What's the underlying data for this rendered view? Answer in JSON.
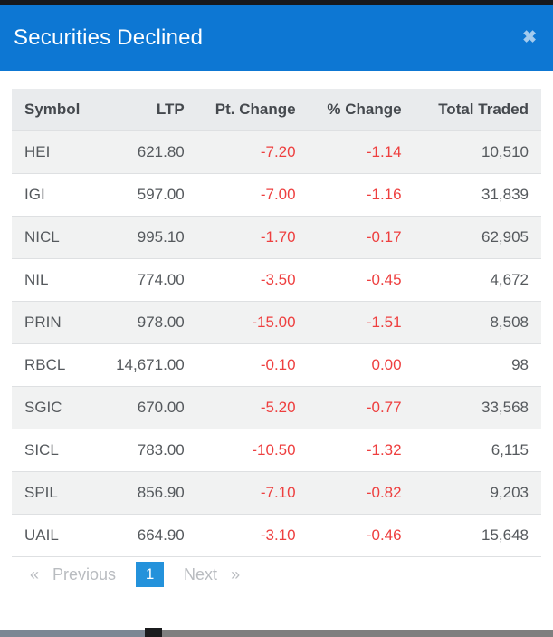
{
  "modal": {
    "title": "Securities Declined",
    "close_icon": "✖"
  },
  "table": {
    "columns": [
      "Symbol",
      "LTP",
      "Pt. Change",
      "% Change",
      "Total Traded"
    ],
    "rows": [
      {
        "symbol": "HEI",
        "ltp": "621.80",
        "pt_change": "-7.20",
        "pct_change": "-1.14",
        "total_traded": "10,510"
      },
      {
        "symbol": "IGI",
        "ltp": "597.00",
        "pt_change": "-7.00",
        "pct_change": "-1.16",
        "total_traded": "31,839"
      },
      {
        "symbol": "NICL",
        "ltp": "995.10",
        "pt_change": "-1.70",
        "pct_change": "-0.17",
        "total_traded": "62,905"
      },
      {
        "symbol": "NIL",
        "ltp": "774.00",
        "pt_change": "-3.50",
        "pct_change": "-0.45",
        "total_traded": "4,672"
      },
      {
        "symbol": "PRIN",
        "ltp": "978.00",
        "pt_change": "-15.00",
        "pct_change": "-1.51",
        "total_traded": "8,508"
      },
      {
        "symbol": "RBCL",
        "ltp": "14,671.00",
        "pt_change": "-0.10",
        "pct_change": "0.00",
        "total_traded": "98"
      },
      {
        "symbol": "SGIC",
        "ltp": "670.00",
        "pt_change": "-5.20",
        "pct_change": "-0.77",
        "total_traded": "33,568"
      },
      {
        "symbol": "SICL",
        "ltp": "783.00",
        "pt_change": "-10.50",
        "pct_change": "-1.32",
        "total_traded": "6,115"
      },
      {
        "symbol": "SPIL",
        "ltp": "856.90",
        "pt_change": "-7.10",
        "pct_change": "-0.82",
        "total_traded": "9,203"
      },
      {
        "symbol": "UAIL",
        "ltp": "664.90",
        "pt_change": "-3.10",
        "pct_change": "-0.46",
        "total_traded": "15,648"
      }
    ]
  },
  "pagination": {
    "prev_arrow": "«",
    "previous_label": "Previous",
    "current_page": "1",
    "next_label": "Next",
    "next_arrow": "»"
  },
  "colors": {
    "header_blue": "#0d77d3",
    "negative_red": "#ee3f3f",
    "active_page_blue": "#2492db",
    "header_row_gray": "#e9ebed",
    "alt_row_gray": "#f1f2f2"
  }
}
